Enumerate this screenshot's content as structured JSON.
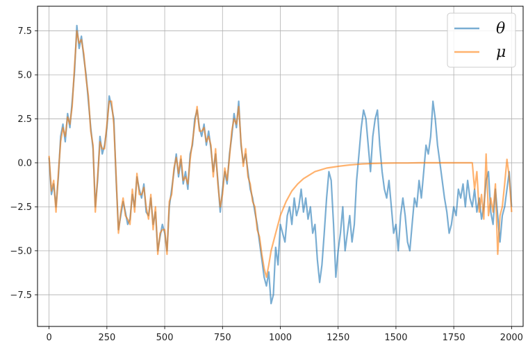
{
  "chart_data": {
    "type": "line",
    "title": "",
    "xlabel": "",
    "ylabel": "",
    "xlim": [
      -50,
      2050
    ],
    "ylim": [
      -9.3,
      8.9
    ],
    "xticks": [
      0,
      250,
      500,
      750,
      1000,
      1250,
      1500,
      1750,
      2000
    ],
    "xtick_labels": [
      "0",
      "250",
      "500",
      "750",
      "1000",
      "1250",
      "1500",
      "1750",
      "2000"
    ],
    "yticks": [
      -7.5,
      -5.0,
      -2.5,
      0.0,
      2.5,
      5.0,
      7.5
    ],
    "ytick_labels": [
      "−7.5",
      "−5.0",
      "−2.5",
      "0.0",
      "2.5",
      "5.0",
      "7.5"
    ],
    "grid": true,
    "legend_position": "top-right",
    "series": [
      {
        "name": "θ",
        "color": "#1f77b4",
        "x": [
          0,
          10,
          20,
          30,
          40,
          50,
          60,
          70,
          80,
          90,
          100,
          110,
          120,
          130,
          140,
          150,
          160,
          170,
          180,
          190,
          200,
          210,
          220,
          230,
          240,
          250,
          260,
          270,
          280,
          290,
          300,
          310,
          320,
          330,
          340,
          350,
          360,
          370,
          380,
          390,
          400,
          410,
          420,
          430,
          440,
          450,
          460,
          470,
          480,
          490,
          500,
          510,
          520,
          530,
          540,
          550,
          560,
          570,
          580,
          590,
          600,
          610,
          620,
          630,
          640,
          650,
          660,
          670,
          680,
          690,
          700,
          710,
          720,
          730,
          740,
          750,
          760,
          770,
          780,
          790,
          800,
          810,
          820,
          830,
          840,
          850,
          860,
          870,
          880,
          890,
          900,
          910,
          920,
          930,
          940,
          950,
          960,
          970,
          980,
          990,
          1000,
          1010,
          1020,
          1030,
          1040,
          1050,
          1060,
          1070,
          1080,
          1090,
          1100,
          1110,
          1120,
          1130,
          1140,
          1150,
          1160,
          1170,
          1180,
          1190,
          1200,
          1210,
          1220,
          1230,
          1240,
          1250,
          1260,
          1270,
          1280,
          1290,
          1300,
          1310,
          1320,
          1330,
          1340,
          1350,
          1360,
          1370,
          1380,
          1390,
          1400,
          1410,
          1420,
          1430,
          1440,
          1450,
          1460,
          1470,
          1480,
          1490,
          1500,
          1510,
          1520,
          1530,
          1540,
          1550,
          1560,
          1570,
          1580,
          1590,
          1600,
          1610,
          1620,
          1630,
          1640,
          1650,
          1660,
          1670,
          1680,
          1690,
          1700,
          1710,
          1720,
          1730,
          1740,
          1750,
          1760,
          1770,
          1780,
          1790,
          1800,
          1810,
          1820,
          1830,
          1840,
          1850,
          1860,
          1870,
          1880,
          1890,
          1900,
          1910,
          1920,
          1930,
          1940,
          1950,
          1960,
          1970,
          1980,
          1990,
          2000
        ],
        "values": [
          0.3,
          -1.8,
          -1.2,
          -2.5,
          -0.8,
          1.5,
          2.2,
          1.2,
          2.8,
          2.0,
          3.5,
          5.2,
          7.8,
          6.5,
          7.2,
          6.0,
          5.0,
          3.5,
          2.0,
          0.8,
          -2.5,
          -1.0,
          1.5,
          0.5,
          1.0,
          2.0,
          3.8,
          3.2,
          2.5,
          -1.0,
          -3.8,
          -3.0,
          -2.2,
          -2.8,
          -3.5,
          -3.2,
          -1.8,
          -2.5,
          -0.8,
          -1.5,
          -2.0,
          -1.2,
          -2.8,
          -3.0,
          -2.0,
          -3.5,
          -2.8,
          -5.0,
          -4.2,
          -3.5,
          -4.0,
          -5.0,
          -2.5,
          -1.5,
          -0.5,
          0.5,
          -0.8,
          0.2,
          -1.2,
          -0.5,
          -1.5,
          0.5,
          1.0,
          2.5,
          3.0,
          2.0,
          1.5,
          2.2,
          1.0,
          1.8,
          0.8,
          -0.5,
          0.5,
          -1.0,
          -2.8,
          -1.5,
          -0.5,
          -1.2,
          0.5,
          1.5,
          2.8,
          2.0,
          3.5,
          1.0,
          0.0,
          0.5,
          -0.5,
          -1.5,
          -2.0,
          -2.8,
          -3.5,
          -4.5,
          -5.5,
          -6.5,
          -7.0,
          -6.2,
          -8.0,
          -7.5,
          -4.8,
          -5.8,
          -3.5,
          -4.0,
          -4.5,
          -3.0,
          -2.5,
          -3.5,
          -2.0,
          -3.0,
          -2.5,
          -1.5,
          -2.8,
          -2.0,
          -3.2,
          -2.5,
          -4.0,
          -3.5,
          -5.5,
          -6.8,
          -5.8,
          -4.0,
          -2.0,
          -0.5,
          -1.0,
          -3.5,
          -6.5,
          -5.0,
          -4.0,
          -2.5,
          -5.0,
          -4.0,
          -3.0,
          -4.5,
          -3.5,
          -1.0,
          0.5,
          2.0,
          3.0,
          2.5,
          1.0,
          -0.5,
          1.5,
          2.5,
          3.0,
          1.0,
          -0.5,
          -1.5,
          -2.0,
          -1.0,
          -2.5,
          -4.0,
          -3.5,
          -5.0,
          -3.0,
          -2.0,
          -3.0,
          -4.5,
          -5.0,
          -3.5,
          -2.0,
          -2.5,
          -1.0,
          -2.0,
          -0.5,
          1.0,
          0.5,
          1.5,
          3.5,
          2.5,
          1.0,
          0.0,
          -1.0,
          -2.0,
          -2.8,
          -4.0,
          -3.5,
          -2.5,
          -3.0,
          -1.5,
          -2.0,
          -1.2,
          -2.5,
          -1.0,
          -2.0,
          -2.5,
          -1.5,
          -2.8,
          -2.0,
          -3.2,
          -2.5,
          -1.0,
          -0.5,
          -2.8,
          -3.5,
          -1.5,
          -3.0,
          -4.5,
          -3.0,
          -2.5,
          -1.5,
          -0.5,
          -2.5
        ]
      },
      {
        "name": "μ",
        "color": "#ff7f0e",
        "x": [
          0,
          10,
          20,
          30,
          40,
          50,
          60,
          70,
          80,
          90,
          100,
          110,
          120,
          130,
          140,
          150,
          160,
          170,
          180,
          190,
          200,
          210,
          220,
          230,
          240,
          250,
          260,
          270,
          280,
          290,
          300,
          310,
          320,
          330,
          340,
          350,
          360,
          370,
          380,
          390,
          400,
          410,
          420,
          430,
          440,
          450,
          460,
          470,
          480,
          490,
          500,
          510,
          520,
          530,
          540,
          550,
          560,
          570,
          580,
          590,
          600,
          610,
          620,
          630,
          640,
          650,
          660,
          670,
          680,
          690,
          700,
          710,
          720,
          730,
          740,
          750,
          760,
          770,
          780,
          790,
          800,
          810,
          820,
          830,
          840,
          850,
          860,
          870,
          880,
          890,
          900,
          910,
          920,
          930,
          940,
          950,
          960,
          970,
          980,
          990,
          1000,
          1025,
          1050,
          1075,
          1100,
          1125,
          1150,
          1175,
          1200,
          1250,
          1300,
          1350,
          1400,
          1450,
          1500,
          1550,
          1600,
          1650,
          1700,
          1750,
          1800,
          1830,
          1840,
          1850,
          1860,
          1870,
          1880,
          1890,
          1900,
          1910,
          1920,
          1930,
          1940,
          1950,
          1960,
          1970,
          1980,
          1990,
          2000
        ],
        "values": [
          0.4,
          -1.6,
          -1.0,
          -2.8,
          -0.6,
          1.2,
          2.0,
          1.5,
          2.6,
          2.2,
          3.2,
          5.5,
          7.5,
          6.8,
          7.0,
          6.2,
          4.8,
          3.8,
          1.8,
          1.0,
          -2.8,
          -0.8,
          1.2,
          0.8,
          0.8,
          2.2,
          3.5,
          3.5,
          2.2,
          -0.8,
          -4.0,
          -2.8,
          -2.0,
          -3.0,
          -3.2,
          -3.5,
          -1.5,
          -2.8,
          -0.6,
          -1.8,
          -1.8,
          -1.4,
          -2.5,
          -3.2,
          -1.8,
          -3.8,
          -2.5,
          -5.2,
          -4.0,
          -3.8,
          -3.8,
          -5.2,
          -2.2,
          -1.8,
          -0.3,
          0.3,
          -0.6,
          0.4,
          -1.0,
          -0.8,
          -1.2,
          0.2,
          1.2,
          2.2,
          3.2,
          1.8,
          1.8,
          2.0,
          1.2,
          1.5,
          1.0,
          -0.8,
          0.8,
          -1.2,
          -2.5,
          -1.8,
          -0.3,
          -1.0,
          0.3,
          1.8,
          2.5,
          2.2,
          3.2,
          1.2,
          -0.2,
          0.8,
          -0.8,
          -1.2,
          -2.2,
          -2.5,
          -3.8,
          -4.2,
          -5.2,
          -6.0,
          -6.5,
          -5.8,
          -5.0,
          -4.5,
          -4.0,
          -3.5,
          -3.0,
          -2.2,
          -1.6,
          -1.2,
          -0.9,
          -0.7,
          -0.5,
          -0.4,
          -0.3,
          -0.2,
          -0.12,
          -0.07,
          -0.04,
          -0.02,
          -0.01,
          -0.01,
          0.0,
          0.0,
          0.0,
          0.0,
          0.0,
          0.0,
          -1.5,
          -0.5,
          -2.8,
          -1.8,
          -3.2,
          0.5,
          -3.0,
          -2.0,
          -2.8,
          -1.2,
          -5.2,
          -3.0,
          -2.5,
          -1.2,
          0.2,
          -0.8,
          -2.8
        ]
      }
    ]
  }
}
